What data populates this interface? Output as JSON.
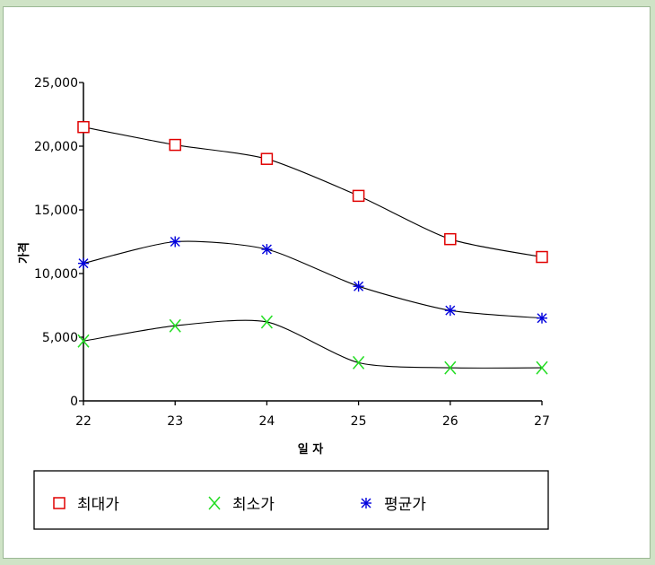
{
  "chart_data": {
    "type": "line",
    "x": [
      22,
      23,
      24,
      25,
      26,
      27
    ],
    "categories": [
      "22",
      "23",
      "24",
      "25",
      "26",
      "27"
    ],
    "xlabel": "일 자",
    "ylabel": "가격",
    "ylim": [
      0,
      25000
    ],
    "yticks": [
      0,
      5000,
      10000,
      15000,
      20000,
      25000
    ],
    "ytick_labels": [
      "0",
      "5,000",
      "10,000",
      "15,000",
      "20,000",
      "25,000"
    ],
    "grid": false,
    "legend_position": "bottom",
    "series": [
      {
        "name": "최대가",
        "marker": "square",
        "color": "#e00000",
        "values": [
          21500,
          20100,
          19000,
          16100,
          12700,
          11300
        ]
      },
      {
        "name": "최소가",
        "marker": "x",
        "color": "#22dd22",
        "values": [
          4700,
          5900,
          6200,
          3000,
          2600,
          2600
        ]
      },
      {
        "name": "평균가",
        "marker": "asterisk",
        "color": "#0000dd",
        "values": [
          10800,
          12500,
          11900,
          9000,
          7100,
          6500
        ]
      }
    ]
  }
}
